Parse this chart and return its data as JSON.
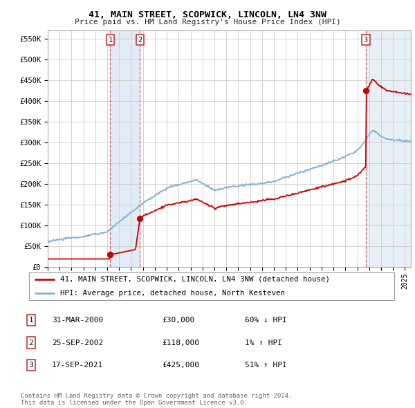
{
  "title": "41, MAIN STREET, SCOPWICK, LINCOLN, LN4 3NW",
  "subtitle": "Price paid vs. HM Land Registry's House Price Index (HPI)",
  "ylim": [
    0,
    570000
  ],
  "yticks": [
    0,
    50000,
    100000,
    150000,
    200000,
    250000,
    300000,
    350000,
    400000,
    450000,
    500000,
    550000
  ],
  "ytick_labels": [
    "£0",
    "£50K",
    "£100K",
    "£150K",
    "£200K",
    "£250K",
    "£300K",
    "£350K",
    "£400K",
    "£450K",
    "£500K",
    "£550K"
  ],
  "background_color": "#ffffff",
  "plot_bg_color": "#ffffff",
  "grid_color": "#cccccc",
  "sale_color": "#cc0000",
  "hpi_color": "#7fb3d3",
  "shade_color": "#deeaf5",
  "transactions": [
    {
      "date": 2000.25,
      "price": 30000,
      "label": "1"
    },
    {
      "date": 2002.75,
      "price": 118000,
      "label": "2"
    },
    {
      "date": 2021.72,
      "price": 425000,
      "label": "3"
    }
  ],
  "table_rows": [
    {
      "num": "1",
      "date": "31-MAR-2000",
      "price": "£30,000",
      "change": "60% ↓ HPI"
    },
    {
      "num": "2",
      "date": "25-SEP-2002",
      "price": "£118,000",
      "change": "1% ↑ HPI"
    },
    {
      "num": "3",
      "date": "17-SEP-2021",
      "price": "£425,000",
      "change": "51% ↑ HPI"
    }
  ],
  "legend_line1": "41, MAIN STREET, SCOPWICK, LINCOLN, LN4 3NW (detached house)",
  "legend_line2": "HPI: Average price, detached house, North Kesteven",
  "footer": "Contains HM Land Registry data © Crown copyright and database right 2024.\nThis data is licensed under the Open Government Licence v3.0.",
  "xmin": 1995.0,
  "xmax": 2025.5
}
